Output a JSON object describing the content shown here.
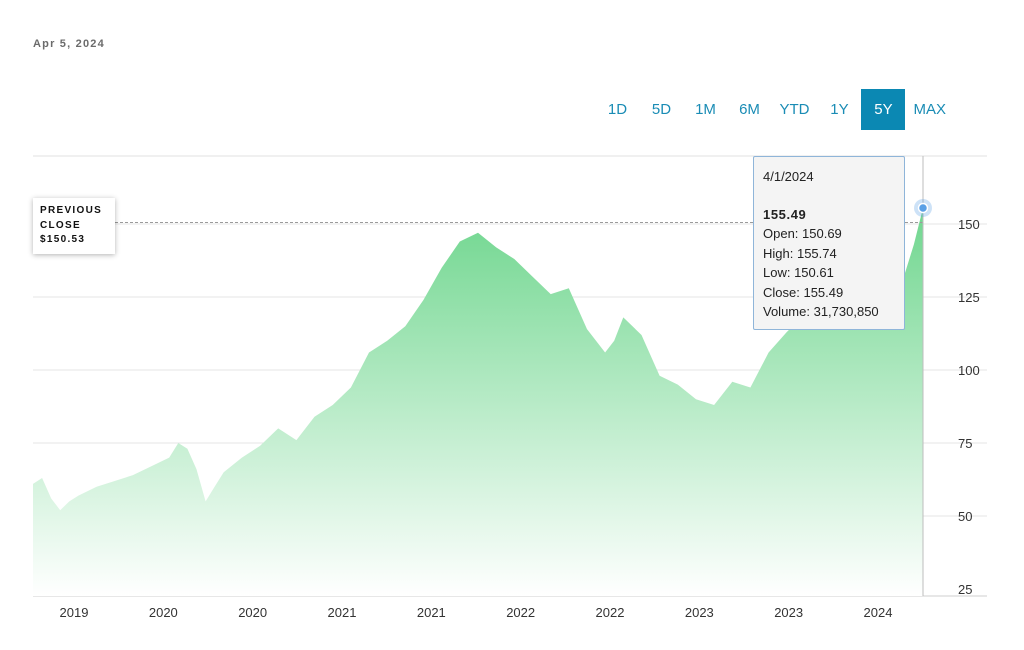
{
  "date_label": "Apr 5, 2024",
  "ranges": [
    {
      "label": "1D",
      "active": false
    },
    {
      "label": "5D",
      "active": false
    },
    {
      "label": "1M",
      "active": false
    },
    {
      "label": "6M",
      "active": false
    },
    {
      "label": "YTD",
      "active": false
    },
    {
      "label": "1Y",
      "active": false
    },
    {
      "label": "5Y",
      "active": true
    },
    {
      "label": "MAX",
      "active": false
    }
  ],
  "previous_close": {
    "line1": "PREVIOUS",
    "line2": "CLOSE",
    "value": "$150.53"
  },
  "tooltip": {
    "date": "4/1/2024",
    "price": "155.49",
    "open": "Open: 150.69",
    "high": "High: 155.74",
    "low": "Low: 150.61",
    "close": "Close: 155.49",
    "volume": "Volume: 31,730,850"
  },
  "colors": {
    "area_top": "#6fd68e",
    "area_bottom": "#ffffff",
    "accent": "#0b88b3",
    "marker": "#5aa0e6"
  },
  "chart_data": {
    "type": "area",
    "title": "",
    "xlabel": "",
    "ylabel": "",
    "ylim": [
      25,
      155
    ],
    "yticks": [
      25,
      50,
      75,
      100,
      125,
      150
    ],
    "xtick_labels": [
      "2019",
      "2020",
      "2020",
      "2021",
      "2021",
      "2022",
      "2022",
      "2023",
      "2023",
      "2024"
    ],
    "previous_close": 150.53,
    "grid": true,
    "x": [
      2019.35,
      2019.4,
      2019.45,
      2019.5,
      2019.55,
      2019.6,
      2019.7,
      2019.8,
      2019.9,
      2020.0,
      2020.1,
      2020.15,
      2020.2,
      2020.25,
      2020.3,
      2020.35,
      2020.4,
      2020.5,
      2020.6,
      2020.7,
      2020.8,
      2020.9,
      2021.0,
      2021.1,
      2021.2,
      2021.3,
      2021.4,
      2021.5,
      2021.6,
      2021.7,
      2021.8,
      2021.9,
      2022.0,
      2022.1,
      2022.2,
      2022.3,
      2022.4,
      2022.5,
      2022.55,
      2022.6,
      2022.7,
      2022.8,
      2022.9,
      2023.0,
      2023.1,
      2023.2,
      2023.3,
      2023.4,
      2023.5,
      2023.6,
      2023.7,
      2023.8,
      2023.9,
      2024.0,
      2024.1,
      2024.15,
      2024.2,
      2024.25
    ],
    "values": [
      61,
      63,
      56,
      52,
      55,
      57,
      60,
      62,
      64,
      67,
      70,
      75,
      73,
      66,
      55,
      60,
      65,
      70,
      74,
      80,
      76,
      84,
      88,
      94,
      106,
      110,
      115,
      124,
      135,
      144,
      147,
      142,
      138,
      132,
      126,
      128,
      114,
      106,
      110,
      118,
      112,
      98,
      95,
      90,
      88,
      96,
      94,
      106,
      113,
      119,
      124,
      127,
      133,
      147,
      140,
      133,
      143,
      155.49
    ]
  }
}
